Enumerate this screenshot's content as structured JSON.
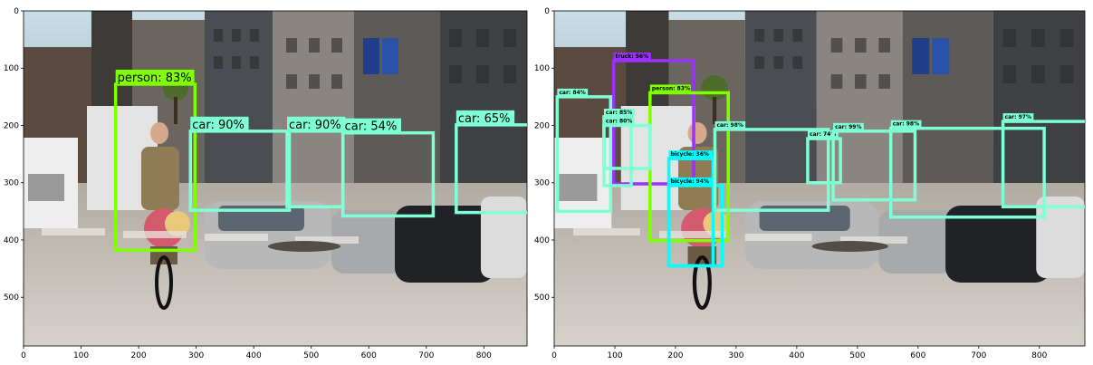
{
  "panels": [
    {
      "id": "left",
      "y_ticks": [
        "0",
        "100",
        "200",
        "300",
        "400",
        "500"
      ],
      "x_ticks": [
        "0",
        "100",
        "200",
        "300",
        "400",
        "500",
        "600",
        "700",
        "800"
      ],
      "detections": [
        {
          "label": "person: 83%",
          "color": "#7fff00",
          "x1": 160,
          "y1": 128,
          "x2": 298,
          "y2": 418
        },
        {
          "label": "car: 90%",
          "color": "#7fffd4",
          "x1": 290,
          "y1": 210,
          "x2": 462,
          "y2": 348
        },
        {
          "label": "car: 90%",
          "color": "#7fffd4",
          "x1": 458,
          "y1": 210,
          "x2": 555,
          "y2": 342
        },
        {
          "label": "car: 54%",
          "color": "#7fffd4",
          "x1": 555,
          "y1": 213,
          "x2": 712,
          "y2": 358
        },
        {
          "label": "car: 65%",
          "color": "#7fffd4",
          "x1": 752,
          "y1": 199,
          "x2": 880,
          "y2": 352
        }
      ]
    },
    {
      "id": "right",
      "y_ticks": [
        "0",
        "100",
        "200",
        "300",
        "400",
        "500"
      ],
      "x_ticks": [
        "0",
        "100",
        "200",
        "300",
        "400",
        "500",
        "600",
        "700",
        "800"
      ],
      "detections": [
        {
          "label": "truck: 56%",
          "color": "#9b30ff",
          "x1": 98,
          "y1": 87,
          "x2": 230,
          "y2": 302
        },
        {
          "label": "person: 83%",
          "color": "#7fff00",
          "x1": 158,
          "y1": 143,
          "x2": 287,
          "y2": 401
        },
        {
          "label": "bicycle: 94%",
          "color": "#00ffff",
          "x1": 189,
          "y1": 305,
          "x2": 277,
          "y2": 445
        },
        {
          "label": "bicycle: 36%",
          "color": "#00ffff",
          "x1": 189,
          "y1": 258,
          "x2": 262,
          "y2": 445
        },
        {
          "label": "car: 84%",
          "color": "#7fffd4",
          "x1": 5,
          "y1": 150,
          "x2": 93,
          "y2": 350
        },
        {
          "label": "car: 85%",
          "color": "#7fffd4",
          "x1": 82,
          "y1": 185,
          "x2": 127,
          "y2": 305
        },
        {
          "label": "car: 80%",
          "color": "#7fffd4",
          "x1": 82,
          "y1": 200,
          "x2": 158,
          "y2": 275
        },
        {
          "label": "car: 98%",
          "color": "#7fffd4",
          "x1": 265,
          "y1": 207,
          "x2": 452,
          "y2": 348
        },
        {
          "label": "car: 74%",
          "color": "#7fffd4",
          "x1": 418,
          "y1": 223,
          "x2": 472,
          "y2": 300
        },
        {
          "label": "car: 99%",
          "color": "#7fffd4",
          "x1": 460,
          "y1": 210,
          "x2": 595,
          "y2": 330
        },
        {
          "label": "car: 98%",
          "color": "#7fffd4",
          "x1": 555,
          "y1": 205,
          "x2": 808,
          "y2": 360
        },
        {
          "label": "car: 97%",
          "color": "#7fffd4",
          "x1": 740,
          "y1": 193,
          "x2": 888,
          "y2": 342
        }
      ]
    }
  ]
}
